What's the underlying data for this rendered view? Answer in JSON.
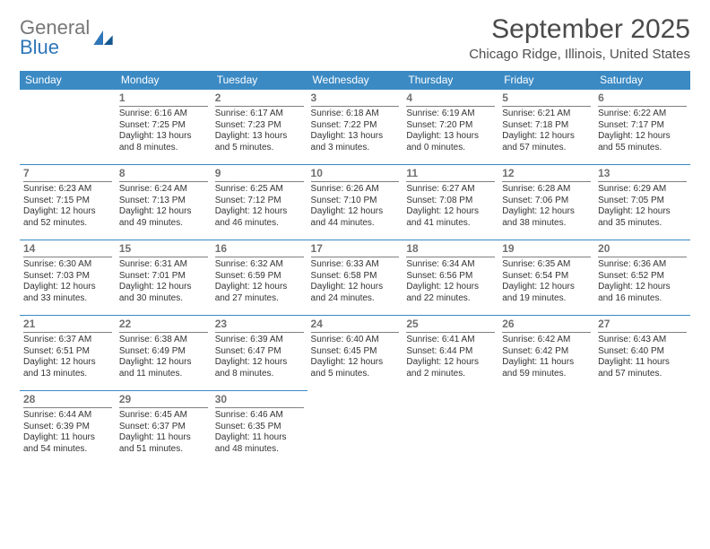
{
  "brand": {
    "word1": "General",
    "word2": "Blue"
  },
  "month_title": "September 2025",
  "location": "Chicago Ridge, Illinois, United States",
  "colors": {
    "header_bg": "#3b8ac4",
    "header_text": "#ffffff",
    "daynum_color": "#707070",
    "border_color": "#3b8ac4",
    "logo_gray": "#777777",
    "logo_blue": "#2f77b8",
    "body_text": "#333333",
    "background": "#ffffff"
  },
  "typography": {
    "title_fontsize": 30,
    "location_fontsize": 15,
    "day_header_fontsize": 12,
    "daynum_fontsize": 12,
    "cell_fontsize": 10
  },
  "day_headers": [
    "Sunday",
    "Monday",
    "Tuesday",
    "Wednesday",
    "Thursday",
    "Friday",
    "Saturday"
  ],
  "weeks": [
    [
      {
        "n": "",
        "sr": "",
        "ss": "",
        "dl": ""
      },
      {
        "n": "1",
        "sr": "6:16 AM",
        "ss": "7:25 PM",
        "dl": "13 hours and 8 minutes."
      },
      {
        "n": "2",
        "sr": "6:17 AM",
        "ss": "7:23 PM",
        "dl": "13 hours and 5 minutes."
      },
      {
        "n": "3",
        "sr": "6:18 AM",
        "ss": "7:22 PM",
        "dl": "13 hours and 3 minutes."
      },
      {
        "n": "4",
        "sr": "6:19 AM",
        "ss": "7:20 PM",
        "dl": "13 hours and 0 minutes."
      },
      {
        "n": "5",
        "sr": "6:21 AM",
        "ss": "7:18 PM",
        "dl": "12 hours and 57 minutes."
      },
      {
        "n": "6",
        "sr": "6:22 AM",
        "ss": "7:17 PM",
        "dl": "12 hours and 55 minutes."
      }
    ],
    [
      {
        "n": "7",
        "sr": "6:23 AM",
        "ss": "7:15 PM",
        "dl": "12 hours and 52 minutes."
      },
      {
        "n": "8",
        "sr": "6:24 AM",
        "ss": "7:13 PM",
        "dl": "12 hours and 49 minutes."
      },
      {
        "n": "9",
        "sr": "6:25 AM",
        "ss": "7:12 PM",
        "dl": "12 hours and 46 minutes."
      },
      {
        "n": "10",
        "sr": "6:26 AM",
        "ss": "7:10 PM",
        "dl": "12 hours and 44 minutes."
      },
      {
        "n": "11",
        "sr": "6:27 AM",
        "ss": "7:08 PM",
        "dl": "12 hours and 41 minutes."
      },
      {
        "n": "12",
        "sr": "6:28 AM",
        "ss": "7:06 PM",
        "dl": "12 hours and 38 minutes."
      },
      {
        "n": "13",
        "sr": "6:29 AM",
        "ss": "7:05 PM",
        "dl": "12 hours and 35 minutes."
      }
    ],
    [
      {
        "n": "14",
        "sr": "6:30 AM",
        "ss": "7:03 PM",
        "dl": "12 hours and 33 minutes."
      },
      {
        "n": "15",
        "sr": "6:31 AM",
        "ss": "7:01 PM",
        "dl": "12 hours and 30 minutes."
      },
      {
        "n": "16",
        "sr": "6:32 AM",
        "ss": "6:59 PM",
        "dl": "12 hours and 27 minutes."
      },
      {
        "n": "17",
        "sr": "6:33 AM",
        "ss": "6:58 PM",
        "dl": "12 hours and 24 minutes."
      },
      {
        "n": "18",
        "sr": "6:34 AM",
        "ss": "6:56 PM",
        "dl": "12 hours and 22 minutes."
      },
      {
        "n": "19",
        "sr": "6:35 AM",
        "ss": "6:54 PM",
        "dl": "12 hours and 19 minutes."
      },
      {
        "n": "20",
        "sr": "6:36 AM",
        "ss": "6:52 PM",
        "dl": "12 hours and 16 minutes."
      }
    ],
    [
      {
        "n": "21",
        "sr": "6:37 AM",
        "ss": "6:51 PM",
        "dl": "12 hours and 13 minutes."
      },
      {
        "n": "22",
        "sr": "6:38 AM",
        "ss": "6:49 PM",
        "dl": "12 hours and 11 minutes."
      },
      {
        "n": "23",
        "sr": "6:39 AM",
        "ss": "6:47 PM",
        "dl": "12 hours and 8 minutes."
      },
      {
        "n": "24",
        "sr": "6:40 AM",
        "ss": "6:45 PM",
        "dl": "12 hours and 5 minutes."
      },
      {
        "n": "25",
        "sr": "6:41 AM",
        "ss": "6:44 PM",
        "dl": "12 hours and 2 minutes."
      },
      {
        "n": "26",
        "sr": "6:42 AM",
        "ss": "6:42 PM",
        "dl": "11 hours and 59 minutes."
      },
      {
        "n": "27",
        "sr": "6:43 AM",
        "ss": "6:40 PM",
        "dl": "11 hours and 57 minutes."
      }
    ],
    [
      {
        "n": "28",
        "sr": "6:44 AM",
        "ss": "6:39 PM",
        "dl": "11 hours and 54 minutes."
      },
      {
        "n": "29",
        "sr": "6:45 AM",
        "ss": "6:37 PM",
        "dl": "11 hours and 51 minutes."
      },
      {
        "n": "30",
        "sr": "6:46 AM",
        "ss": "6:35 PM",
        "dl": "11 hours and 48 minutes."
      },
      {
        "n": "",
        "sr": "",
        "ss": "",
        "dl": ""
      },
      {
        "n": "",
        "sr": "",
        "ss": "",
        "dl": ""
      },
      {
        "n": "",
        "sr": "",
        "ss": "",
        "dl": ""
      },
      {
        "n": "",
        "sr": "",
        "ss": "",
        "dl": ""
      }
    ]
  ],
  "labels": {
    "sunrise": "Sunrise:",
    "sunset": "Sunset:",
    "daylight": "Daylight:"
  }
}
